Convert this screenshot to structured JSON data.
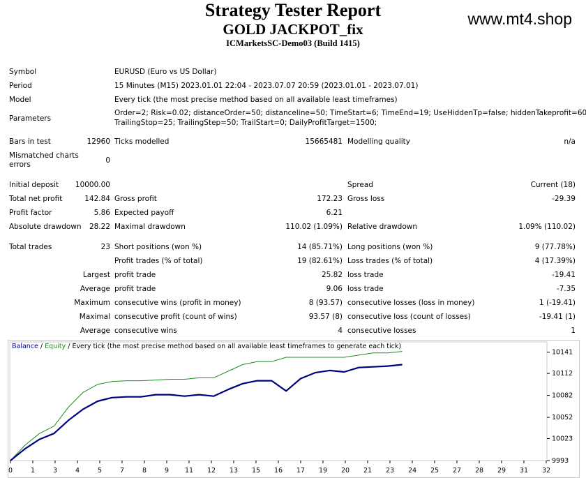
{
  "header": {
    "title": "Strategy Tester Report",
    "ea_name": "GOLD JACKPOT_fix",
    "server": "ICMarketsSC-Demo03 (Build 1415)",
    "site": "www.mt4.shop"
  },
  "info": {
    "symbol_label": "Symbol",
    "symbol": "EURUSD (Euro vs US Dollar)",
    "period_label": "Period",
    "period": "15 Minutes (M15) 2023.01.01 22:04 - 2023.07.07 20:59 (2023.01.01 - 2023.07.01)",
    "model_label": "Model",
    "model": "Every tick (the most precise method based on all available least timeframes)",
    "params_label": "Parameters",
    "params_line1": "Order=2; Risk=0.02; distanceOrder=50; distanceline=50; TimeStart=6; TimeEnd=19; UseHiddenTp=false; hiddenTakeprofit=60;",
    "params_line2": "TrailingStop=25; TrailingStep=50; TrailStart=0; DailyProfitTarget=1500;"
  },
  "stats": {
    "bars_label": "Bars in test",
    "bars": "12960",
    "ticks_label": "Ticks modelled",
    "ticks": "15665481",
    "quality_label": "Modelling quality",
    "quality": "n/a",
    "mismatched_label_1": "Mismatched charts",
    "mismatched_label_2": "errors",
    "mismatched": "0",
    "deposit_label": "Initial deposit",
    "deposit": "10000.00",
    "spread_label": "Spread",
    "spread": "Current (18)",
    "net_label": "Total net profit",
    "net": "142.84",
    "gross_profit_label": "Gross profit",
    "gross_profit": "172.23",
    "gross_loss_label": "Gross loss",
    "gross_loss": "-29.39",
    "pf_label": "Profit factor",
    "pf": "5.86",
    "payoff_label": "Expected payoff",
    "payoff": "6.21",
    "abs_dd_label": "Absolute drawdown",
    "abs_dd": "28.22",
    "max_dd_label": "Maximal drawdown",
    "max_dd": "110.02 (1.09%)",
    "rel_dd_label": "Relative drawdown",
    "rel_dd": "1.09% (110.02)",
    "trades_label": "Total trades",
    "trades": "23",
    "short_label": "Short positions (won %)",
    "short": "14 (85.71%)",
    "long_label": "Long positions (won %)",
    "long": "9 (77.78%)",
    "profit_trades_label": "Profit trades (% of total)",
    "profit_trades": "19 (82.61%)",
    "loss_trades_label": "Loss trades (% of total)",
    "loss_trades": "4 (17.39%)",
    "largest": "Largest",
    "largest_profit_label": "profit trade",
    "largest_profit": "25.82",
    "largest_loss_label": "loss trade",
    "largest_loss": "-19.41",
    "average": "Average",
    "avg_profit_label": "profit trade",
    "avg_profit": "9.06",
    "avg_loss_label": "loss trade",
    "avg_loss": "-7.35",
    "maximum": "Maximum",
    "max_cw_label": "consecutive wins (profit in money)",
    "max_cw": "8 (93.57)",
    "max_cl_label": "consecutive losses (loss in money)",
    "max_cl": "1 (-19.41)",
    "maximal": "Maximal",
    "mxl_cp_label": "consecutive profit (count of wins)",
    "mxl_cp": "93.57 (8)",
    "mxl_cl_label": "consecutive loss (count of losses)",
    "mxl_cl": "-19.41 (1)",
    "average2": "Average",
    "avg_cw_label": "consecutive wins",
    "avg_cw": "4",
    "avg_cl_label": "consecutive losses",
    "avg_cl": "1"
  },
  "legend": {
    "balance": "Balance",
    "sep1": " / ",
    "equity": "Equity",
    "sep2": " / ",
    "rest": "Every tick (the most precise method based on all available least timeframes to generate each tick)"
  },
  "colors": {
    "balance": "#00007f",
    "equity": "#1e8c1e",
    "grid": "#c8c8c8"
  },
  "chart_data": {
    "type": "line",
    "xlabel": "",
    "ylabel": "",
    "x_ticks": [
      "0",
      "1",
      "3",
      "4",
      "5",
      "7",
      "8",
      "9",
      "11",
      "12",
      "13",
      "15",
      "16",
      "17",
      "19",
      "20",
      "21",
      "23",
      "24",
      "25",
      "27",
      "28",
      "29",
      "31",
      "32"
    ],
    "y_ticks": [
      "10141",
      "10112",
      "10082",
      "10052",
      "10023",
      "9993"
    ],
    "ylim": [
      9993,
      10155
    ],
    "series": [
      {
        "name": "Balance",
        "values": [
          9993,
          10014,
          10030,
          10040,
          10066,
          10086,
          10097,
          10101,
          10102,
          10102,
          10103,
          10104,
          10104,
          10106,
          10106,
          10115,
          10124,
          10128,
          10128,
          10134,
          10134,
          10134,
          10134,
          10134,
          10137,
          10140,
          10140,
          10142
        ]
      },
      {
        "name": "Equity",
        "values": [
          9993,
          10009,
          10022,
          10030,
          10048,
          10063,
          10074,
          10079,
          10080,
          10080,
          10083,
          10083,
          10081,
          10083,
          10081,
          10090,
          10098,
          10102,
          10102,
          10088,
          10105,
          10113,
          10116,
          10114,
          10120,
          10121,
          10122,
          10124
        ]
      }
    ]
  }
}
